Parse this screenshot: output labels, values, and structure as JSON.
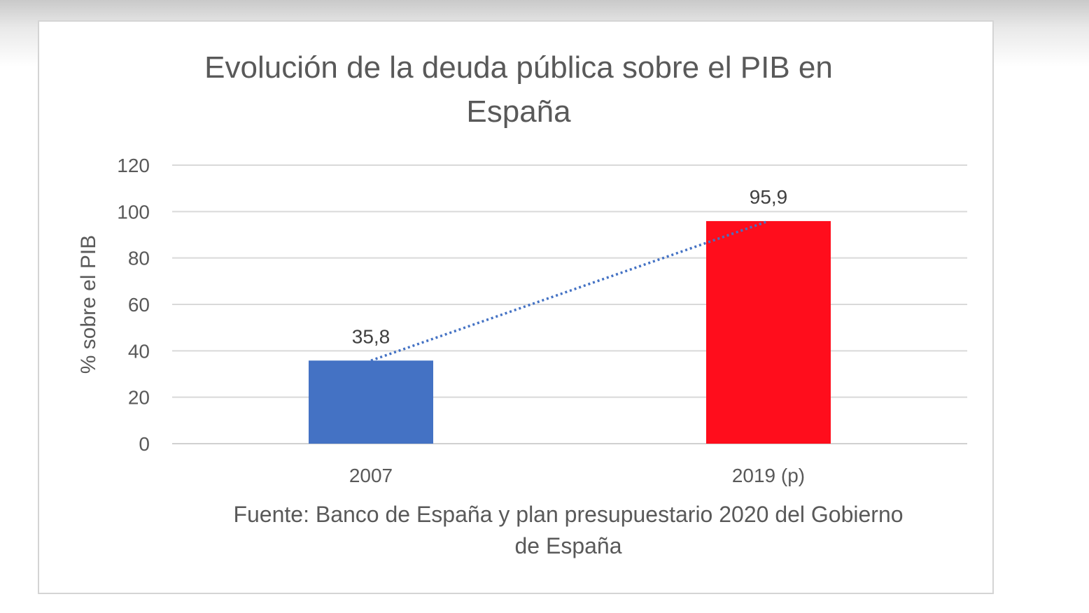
{
  "chart_data": {
    "type": "bar",
    "title_lines": [
      "Evolución de la deuda pública sobre el PIB en",
      "España"
    ],
    "categories": [
      "2007",
      "2019 (p)"
    ],
    "values": [
      35.8,
      95.9
    ],
    "data_labels": [
      "35,8",
      "95,9"
    ],
    "bar_colors": [
      "#4472c4",
      "#ff0d1c"
    ],
    "trendline": {
      "style": "dotted",
      "color": "#4472c4"
    },
    "xlabel": "",
    "ylabel": "% sobre el PIB",
    "ylim": [
      0,
      120
    ],
    "yticks": [
      0,
      20,
      40,
      60,
      80,
      100,
      120
    ],
    "grid": true,
    "legend": "none",
    "source_lines": [
      "Fuente: Banco de España y plan presupuestario 2020 del Gobierno",
      "de España"
    ]
  }
}
